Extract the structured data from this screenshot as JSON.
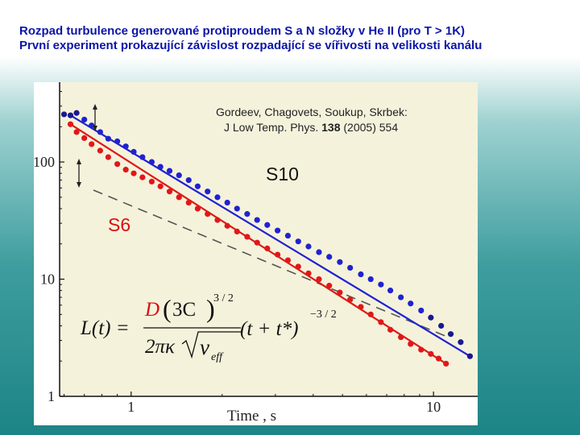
{
  "header": {
    "line1": "Rozpad  turbulence generované protiproudem S a N složky v He II (pro T > 1K)",
    "line2": "První experiment prokazující závislost rozpadající se vířivosti na velikosti kanálu"
  },
  "citation": {
    "authors": "Gordeev, Chagovets, Soukup, Skrbek:",
    "journal": "J Low Temp. Phys.",
    "volume": "138",
    "rest": "(2005) 554"
  },
  "formula": {
    "lhs": "L(t) =",
    "D": "D",
    "paren_open": "(",
    "inner": "3C",
    "paren_close": ")",
    "exp1": "3 / 2",
    "den1": "2πκ",
    "sqrt_sub": "ν",
    "sub": "eff",
    "rhs": "(t + t*)",
    "exp2": "−3 / 2"
  },
  "colors": {
    "plot_bg": "#f5f2dc",
    "s10": "#1f22d0",
    "s10_dark": "#1a1890",
    "s6": "#e01818",
    "title": "#0b15a8"
  },
  "chart_data": {
    "type": "scatter",
    "xscale": "log",
    "yscale": "log",
    "xlim": [
      0.58,
      14
    ],
    "ylim": [
      1,
      480
    ],
    "xlabel": "Time , s",
    "ylabel": "",
    "x_ticks": [
      1,
      10
    ],
    "x_tick_labels": [
      "1",
      "10"
    ],
    "y_ticks": [
      1,
      10,
      100
    ],
    "y_tick_labels": [
      "1",
      "10",
      "100"
    ],
    "grid": false,
    "series": [
      {
        "name": "S10",
        "color": "#1f22d0",
        "x": [
          0.6,
          0.63,
          0.66,
          0.7,
          0.74,
          0.79,
          0.84,
          0.9,
          0.96,
          1.02,
          1.09,
          1.17,
          1.25,
          1.34,
          1.44,
          1.55,
          1.66,
          1.79,
          1.93,
          2.08,
          2.24,
          2.42,
          2.61,
          2.82,
          3.05,
          3.3,
          3.57,
          3.86,
          4.18,
          4.52,
          4.9,
          5.3,
          5.75,
          6.2,
          6.7,
          7.2,
          7.8,
          8.4,
          9.1,
          9.8,
          10.6,
          11.4,
          12.3,
          13.2
        ],
        "y": [
          255,
          250,
          262,
          230,
          205,
          180,
          158,
          150,
          136,
          122,
          110,
          100,
          91,
          84,
          77,
          70,
          62,
          56,
          50,
          45,
          40,
          36,
          32,
          29,
          26,
          23.5,
          21,
          19,
          17,
          15.5,
          14,
          12.5,
          11,
          10,
          9,
          8,
          7,
          6.2,
          5.4,
          4.7,
          4,
          3.4,
          2.9,
          2.2
        ]
      },
      {
        "name": "S6",
        "color": "#e01818",
        "x": [
          0.63,
          0.66,
          0.7,
          0.74,
          0.79,
          0.84,
          0.9,
          0.96,
          1.02,
          1.09,
          1.17,
          1.25,
          1.34,
          1.44,
          1.55,
          1.66,
          1.79,
          1.93,
          2.08,
          2.24,
          2.42,
          2.61,
          2.82,
          3.05,
          3.3,
          3.57,
          3.86,
          4.18,
          4.52,
          4.9,
          5.3,
          5.75,
          6.2,
          6.7,
          7.2,
          7.8,
          8.4,
          9.1,
          9.8,
          10.4,
          11.0
        ],
        "y": [
          210,
          180,
          160,
          142,
          125,
          110,
          96,
          86,
          80,
          74,
          68,
          62,
          56,
          50,
          45,
          40,
          36,
          32,
          28.5,
          25.5,
          23,
          20.5,
          18.3,
          16.2,
          14.5,
          12.8,
          11.2,
          10,
          8.8,
          7.7,
          6.7,
          5.8,
          5,
          4.3,
          3.7,
          3.2,
          2.8,
          2.5,
          2.3,
          2.1,
          1.9
        ]
      }
    ],
    "labels": [
      "S10",
      "S6"
    ]
  }
}
